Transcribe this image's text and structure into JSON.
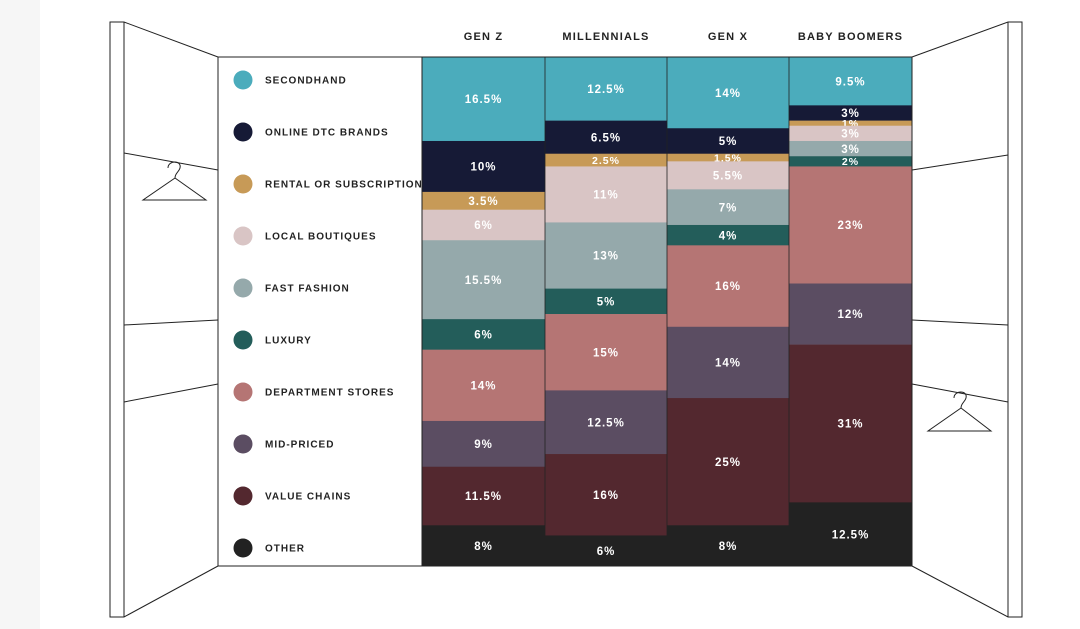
{
  "colors": {
    "background_left_strip": "#f6f6f6",
    "line": "#222222",
    "segment_text": "#ffffff"
  },
  "chart_data": {
    "type": "bar",
    "stacked": true,
    "orientation": "vertical",
    "categories": [
      "GEN Z",
      "MILLENNIALS",
      "GEN X",
      "BABY BOOMERS"
    ],
    "unit": "%",
    "ylim": [
      0,
      100
    ],
    "legend_position": "left",
    "series": [
      {
        "name": "SECONDHAND",
        "color": "#4bacbc",
        "values": [
          16.5,
          12.5,
          14,
          9.5
        ],
        "labels": [
          "16.5%",
          "12.5%",
          "14%",
          "9.5%"
        ]
      },
      {
        "name": "ONLINE DTC BRANDS",
        "color": "#161a36",
        "values": [
          10,
          6.5,
          5,
          3
        ],
        "labels": [
          "10%",
          "6.5%",
          "5%",
          "3%"
        ]
      },
      {
        "name": "RENTAL OR SUBSCRIPTION",
        "color": "#c79a57",
        "values": [
          3.5,
          2.5,
          1.5,
          1
        ],
        "labels": [
          "3.5%",
          "2.5%",
          "1.5%",
          "1%"
        ]
      },
      {
        "name": "LOCAL BOUTIQUES",
        "color": "#d9c5c5",
        "values": [
          6,
          11,
          5.5,
          3
        ],
        "labels": [
          "6%",
          "11%",
          "5.5%",
          "3%"
        ]
      },
      {
        "name": "FAST FASHION",
        "color": "#95a9ab",
        "values": [
          15.5,
          13,
          7,
          3
        ],
        "labels": [
          "15.5%",
          "13%",
          "7%",
          "3%"
        ]
      },
      {
        "name": "LUXURY",
        "color": "#235d5a",
        "values": [
          6,
          5,
          4,
          2
        ],
        "labels": [
          "6%",
          "5%",
          "4%",
          "2%"
        ]
      },
      {
        "name": "DEPARTMENT STORES",
        "color": "#b57574",
        "values": [
          14,
          15,
          16,
          23
        ],
        "labels": [
          "14%",
          "15%",
          "16%",
          "23%"
        ]
      },
      {
        "name": "MID-PRICED",
        "color": "#5b4d62",
        "values": [
          9,
          12.5,
          14,
          12
        ],
        "labels": [
          "9%",
          "12.5%",
          "14%",
          "12%"
        ]
      },
      {
        "name": "VALUE CHAINS",
        "color": "#53282f",
        "values": [
          11.5,
          16,
          25,
          31
        ],
        "labels": [
          "11.5%",
          "16%",
          "25%",
          "31%"
        ]
      },
      {
        "name": "OTHER",
        "color": "#222222",
        "values": [
          8,
          6,
          8,
          12.5
        ],
        "labels": [
          "8%",
          "6%",
          "8%",
          "12.5%"
        ]
      }
    ]
  }
}
